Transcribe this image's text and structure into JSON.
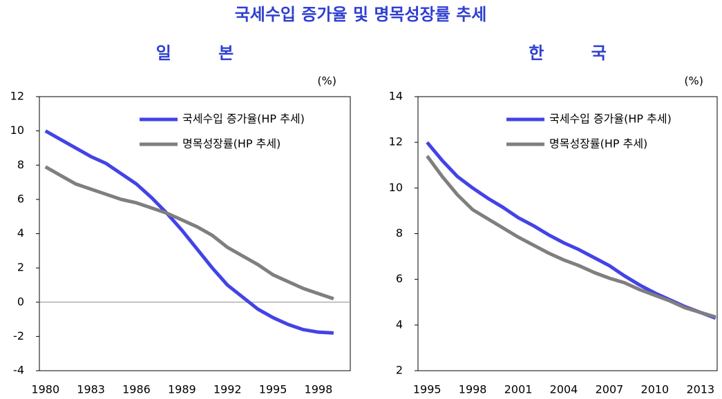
{
  "title": "국세수입 증가율 및 명목성장률 추세",
  "chart_data": [
    {
      "type": "line",
      "title": "일 본",
      "y_unit": "(%)",
      "x": [
        1980,
        1981,
        1982,
        1983,
        1984,
        1985,
        1986,
        1987,
        1988,
        1989,
        1990,
        1991,
        1992,
        1993,
        1994,
        1995,
        1996,
        1997,
        1998,
        1999
      ],
      "xlim": [
        1979.6,
        2000.1
      ],
      "xticks": [
        1980,
        1983,
        1986,
        1989,
        1992,
        1995,
        1998
      ],
      "ylim": [
        -4,
        12
      ],
      "yticks": [
        -4,
        -2,
        0,
        2,
        4,
        6,
        8,
        10,
        12
      ],
      "series": [
        {
          "name": "국세수입 증가율(HP 추세)",
          "color": "#4343e6",
          "values": [
            10.0,
            9.5,
            9.0,
            8.5,
            8.1,
            7.5,
            6.9,
            6.1,
            5.2,
            4.2,
            3.1,
            2.0,
            1.0,
            0.3,
            -0.4,
            -0.9,
            -1.3,
            -1.6,
            -1.75,
            -1.8
          ]
        },
        {
          "name": "명목성장률(HP 추세)",
          "color": "#7f7f7f",
          "values": [
            7.9,
            7.4,
            6.9,
            6.6,
            6.3,
            6.0,
            5.8,
            5.5,
            5.2,
            4.8,
            4.4,
            3.9,
            3.2,
            2.7,
            2.2,
            1.6,
            1.2,
            0.8,
            0.5,
            0.2
          ]
        }
      ]
    },
    {
      "type": "line",
      "title": "한 국",
      "y_unit": "(%)",
      "x": [
        1995,
        1996,
        1997,
        1998,
        1999,
        2000,
        2001,
        2002,
        2003,
        2004,
        2005,
        2006,
        2007,
        2008,
        2009,
        2010,
        2011,
        2012,
        2013,
        2014
      ],
      "xlim": [
        1994.4,
        2014.1
      ],
      "xticks": [
        1995,
        1998,
        2001,
        2004,
        2007,
        2010,
        2013
      ],
      "ylim": [
        2,
        14
      ],
      "yticks": [
        2,
        4,
        6,
        8,
        10,
        12,
        14
      ],
      "series": [
        {
          "name": "국세수입 증가율(HP 추세)",
          "color": "#4343e6",
          "values": [
            12.0,
            11.2,
            10.5,
            10.0,
            9.55,
            9.15,
            8.7,
            8.35,
            7.95,
            7.6,
            7.3,
            6.95,
            6.6,
            6.15,
            5.75,
            5.4,
            5.1,
            4.8,
            4.55,
            4.3
          ]
        },
        {
          "name": "명목성장률(HP 추세)",
          "color": "#7f7f7f",
          "values": [
            11.4,
            10.5,
            9.7,
            9.05,
            8.65,
            8.25,
            7.85,
            7.5,
            7.15,
            6.85,
            6.6,
            6.3,
            6.05,
            5.85,
            5.55,
            5.3,
            5.05,
            4.75,
            4.55,
            4.35
          ]
        }
      ]
    }
  ]
}
